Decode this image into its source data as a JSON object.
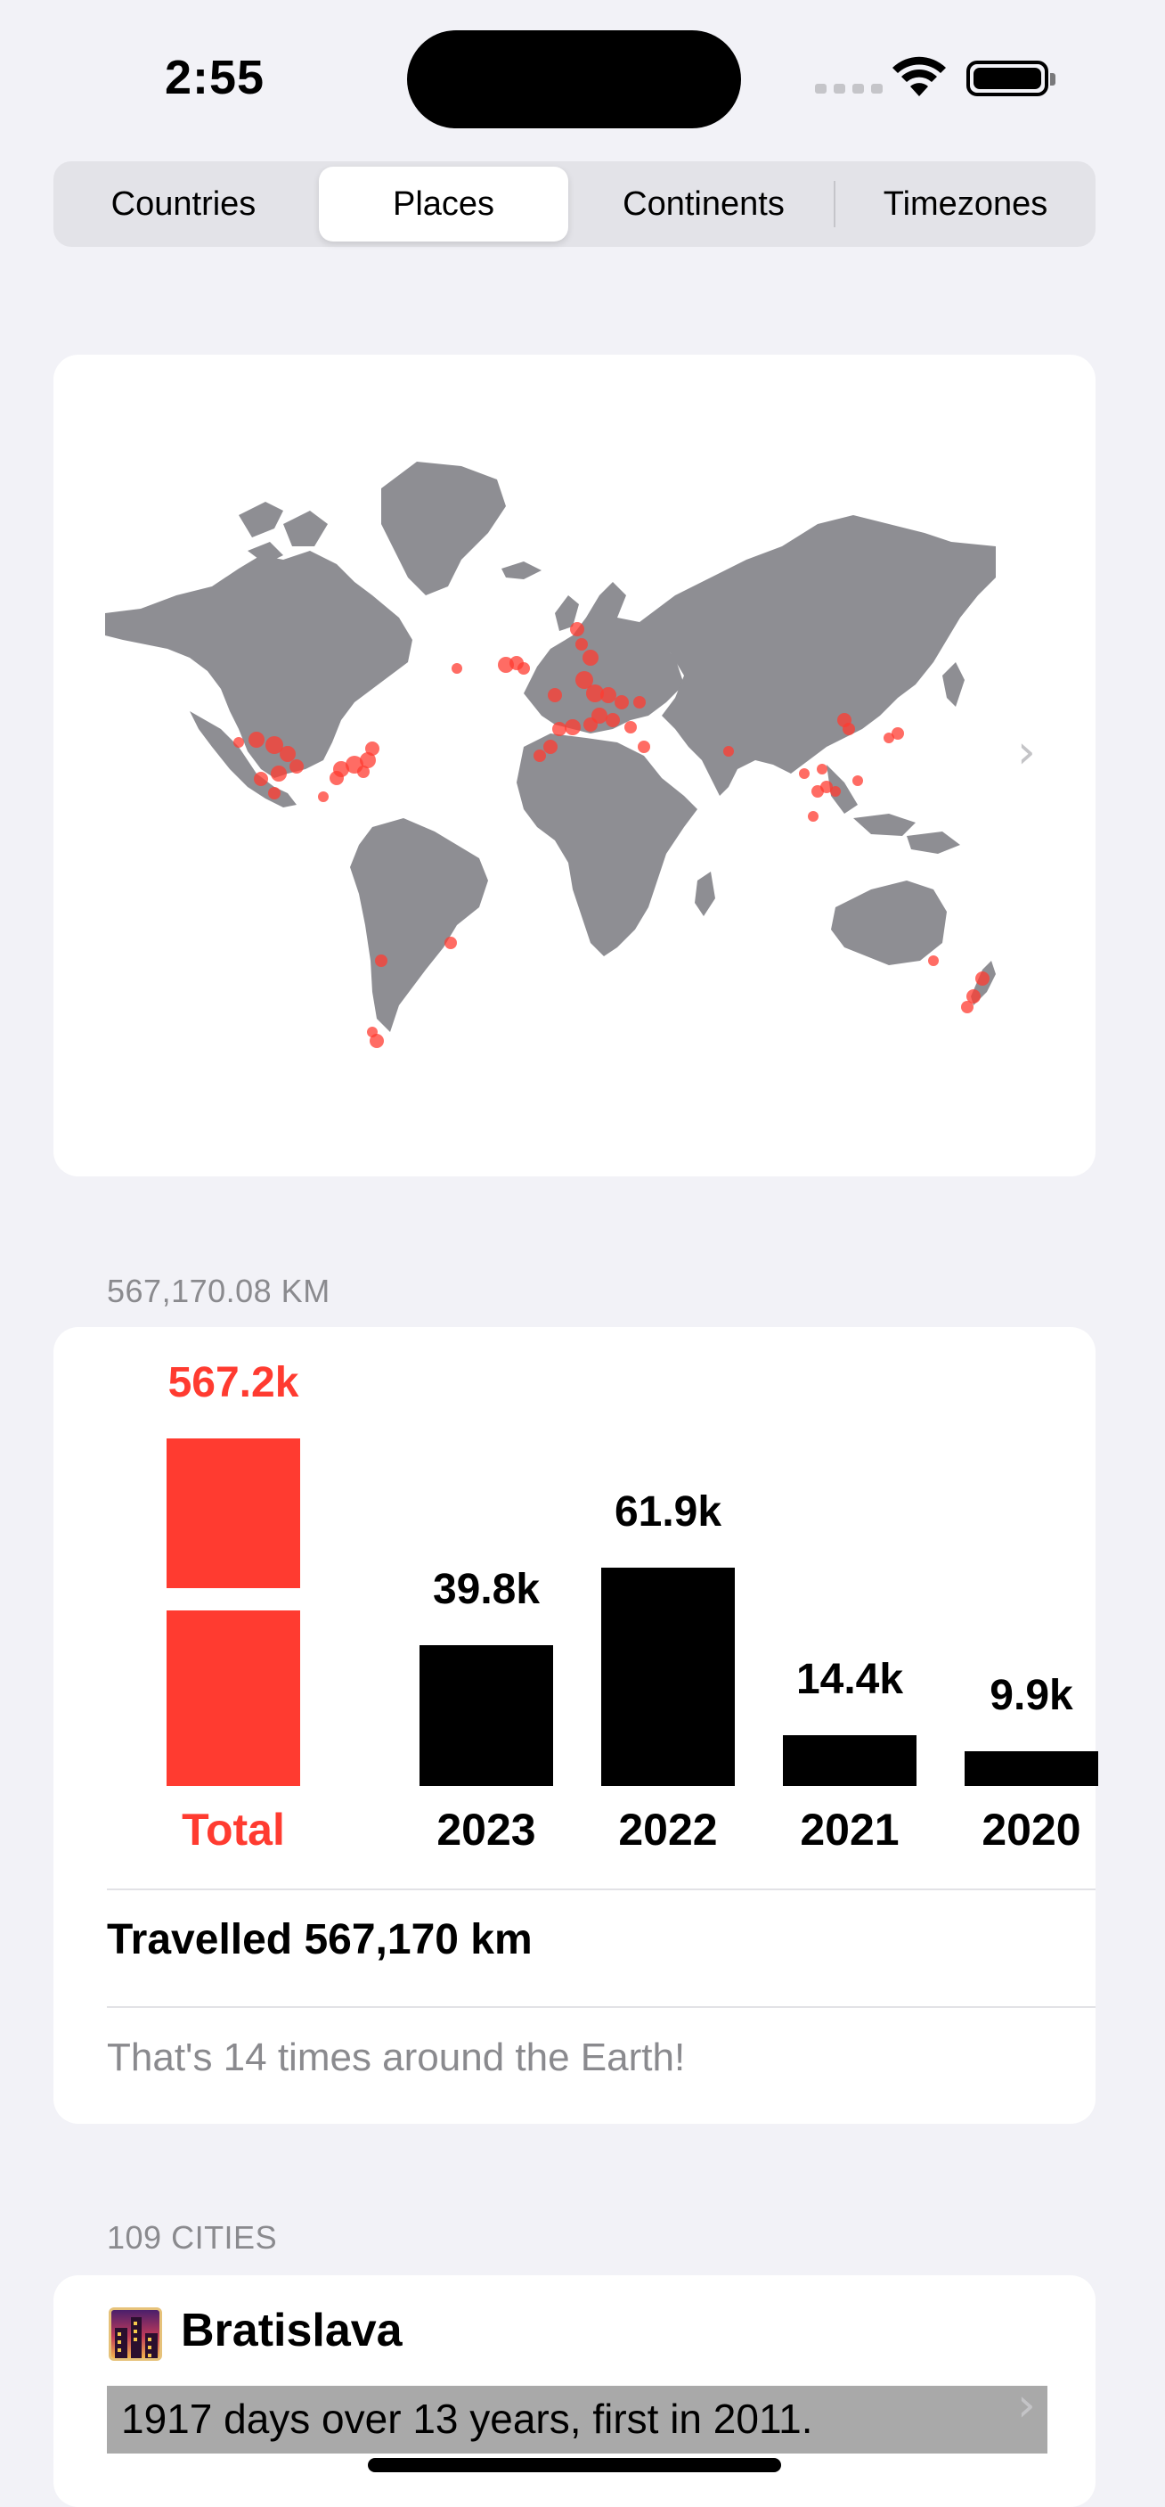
{
  "status_bar": {
    "time": "2:55"
  },
  "tabs": [
    {
      "label": "Countries",
      "active": false
    },
    {
      "label": "Places",
      "active": true
    },
    {
      "label": "Continents",
      "active": false
    },
    {
      "label": "Timezones",
      "active": false
    }
  ],
  "distance": {
    "header": "567,170.08 KM",
    "travelled": "Travelled 567,170 km",
    "earth_note": "That's 14 times around the Earth!"
  },
  "chart_data": {
    "type": "bar",
    "categories": [
      "Total",
      "2023",
      "2022",
      "2021",
      "2020"
    ],
    "values": [
      567.2,
      39.8,
      61.9,
      14.4,
      9.9
    ],
    "value_labels": [
      "567.2k",
      "39.8k",
      "61.9k",
      "14.4k",
      "9.9k"
    ],
    "colors": [
      "#ff3b30",
      "#000000",
      "#000000",
      "#000000",
      "#000000"
    ],
    "total_bar_broken": true
  },
  "cities": {
    "header": "109 CITIES",
    "items": [
      {
        "name": "Bratislava",
        "description": "1917 days over 13 years, first in 2011."
      }
    ]
  },
  "colors": {
    "accent": "#ff3b30",
    "land": "#8e8e93",
    "background": "#f2f2f7"
  },
  "icons": [
    "wifi-icon",
    "battery-icon",
    "chevron-right-icon",
    "cityscape-emoji-icon"
  ]
}
